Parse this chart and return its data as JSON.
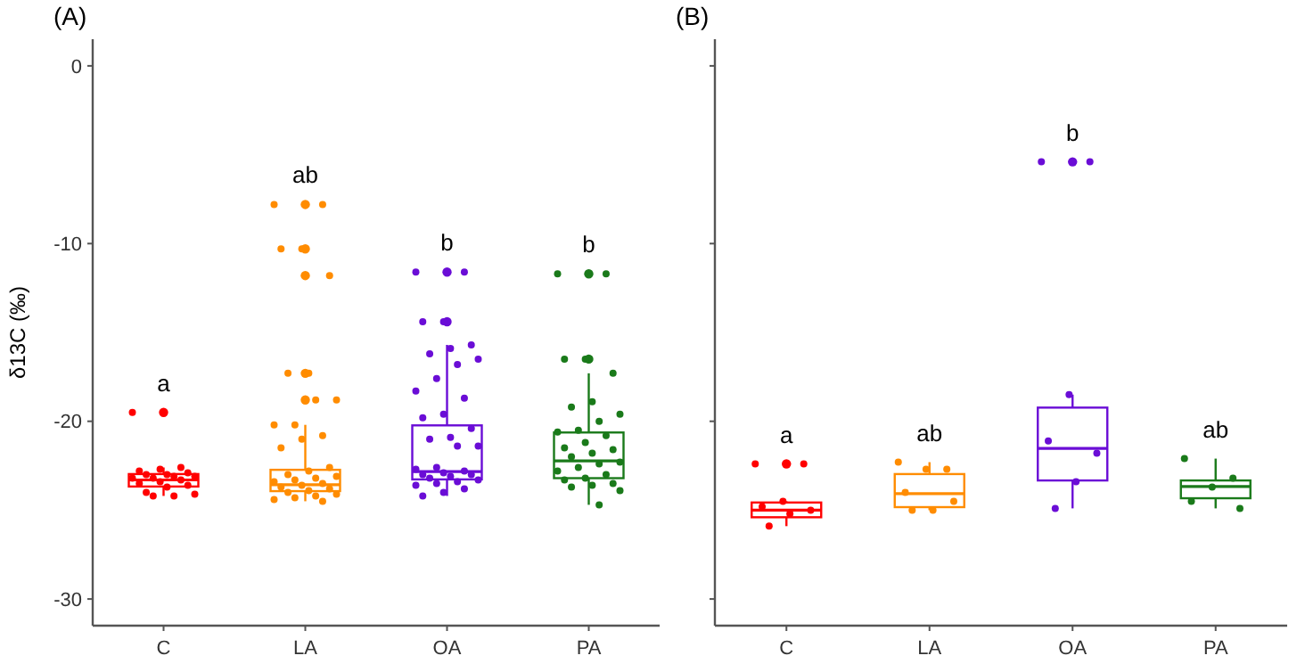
{
  "chart_data": [
    {
      "type": "box",
      "title": "(A)",
      "ylabel": "δ13C (‰)",
      "categories": [
        "C",
        "LA",
        "OA",
        "PA"
      ],
      "colors": [
        "#ff0000",
        "#ff8c00",
        "#6a0dd6",
        "#1a7a1a"
      ],
      "boxes": [
        {
          "low": -24.2,
          "q1": -23.67,
          "median": -23.3,
          "q3": -22.97,
          "high": -22.6,
          "outliers": [
            -19.5
          ]
        },
        {
          "low": -24.5,
          "q1": -23.93,
          "median": -23.57,
          "q3": -22.73,
          "high": -20.2,
          "outliers": [
            -7.8,
            -10.3,
            -11.8,
            -17.3,
            -18.8
          ]
        },
        {
          "low": -24.2,
          "q1": -23.27,
          "median": -22.83,
          "q3": -20.23,
          "high": -15.7,
          "outliers": [
            -11.6,
            -14.4
          ]
        },
        {
          "low": -24.7,
          "q1": -23.2,
          "median": -22.23,
          "q3": -20.63,
          "high": -17.3,
          "outliers": [
            -11.7,
            -16.5
          ]
        }
      ],
      "series": [
        {
          "type": "scatter",
          "color": "#ff0000",
          "x": [
            "C",
            "C",
            "C",
            "C",
            "C",
            "C",
            "C",
            "C",
            "C",
            "C",
            "C",
            "C",
            "C",
            "C",
            "C",
            "C",
            "C",
            "C",
            "C",
            "C"
          ],
          "values": [
            -19.5,
            -22.6,
            -22.7,
            -22.8,
            -22.9,
            -23.0,
            -23.0,
            -23.1,
            -23.1,
            -23.2,
            -23.2,
            -23.3,
            -23.4,
            -23.5,
            -23.6,
            -23.7,
            -24.0,
            -24.1,
            -24.2,
            -24.2
          ]
        },
        {
          "type": "scatter",
          "color": "#ff8c00",
          "x": [
            "LA",
            "LA",
            "LA",
            "LA",
            "LA",
            "LA",
            "LA",
            "LA",
            "LA",
            "LA",
            "LA",
            "LA",
            "LA",
            "LA",
            "LA",
            "LA",
            "LA",
            "LA",
            "LA",
            "LA",
            "LA",
            "LA",
            "LA",
            "LA",
            "LA",
            "LA",
            "LA",
            "LA",
            "LA",
            "LA",
            "LA",
            "LA"
          ],
          "values": [
            -7.8,
            -7.8,
            -10.3,
            -10.3,
            -11.8,
            -17.3,
            -17.3,
            -18.8,
            -18.8,
            -20.2,
            -20.2,
            -20.8,
            -21.0,
            -21.5,
            -22.6,
            -22.8,
            -23.0,
            -23.1,
            -23.2,
            -23.3,
            -23.4,
            -23.5,
            -23.6,
            -23.7,
            -23.8,
            -23.9,
            -24.0,
            -24.1,
            -24.2,
            -24.3,
            -24.4,
            -24.5
          ]
        },
        {
          "type": "scatter",
          "color": "#6a0dd6",
          "x": [
            "OA",
            "OA",
            "OA",
            "OA",
            "OA",
            "OA",
            "OA",
            "OA",
            "OA",
            "OA",
            "OA",
            "OA",
            "OA",
            "OA",
            "OA",
            "OA",
            "OA",
            "OA",
            "OA",
            "OA",
            "OA",
            "OA",
            "OA",
            "OA",
            "OA",
            "OA",
            "OA",
            "OA",
            "OA",
            "OA",
            "OA",
            "OA",
            "OA",
            "OA"
          ],
          "values": [
            -11.6,
            -11.6,
            -14.4,
            -14.4,
            -15.7,
            -15.9,
            -16.2,
            -16.5,
            -16.8,
            -17.6,
            -18.3,
            -18.7,
            -19.6,
            -19.8,
            -20.4,
            -20.9,
            -21.0,
            -21.4,
            -21.4,
            -22.6,
            -22.7,
            -22.8,
            -22.9,
            -23.0,
            -23.0,
            -23.1,
            -23.2,
            -23.3,
            -23.4,
            -23.5,
            -23.6,
            -23.8,
            -24.0,
            -24.2
          ]
        },
        {
          "type": "scatter",
          "color": "#1a7a1a",
          "x": [
            "PA",
            "PA",
            "PA",
            "PA",
            "PA",
            "PA",
            "PA",
            "PA",
            "PA",
            "PA",
            "PA",
            "PA",
            "PA",
            "PA",
            "PA",
            "PA",
            "PA",
            "PA",
            "PA",
            "PA",
            "PA",
            "PA",
            "PA",
            "PA",
            "PA",
            "PA",
            "PA",
            "PA",
            "PA"
          ],
          "values": [
            -11.7,
            -11.7,
            -16.5,
            -16.5,
            -17.3,
            -18.9,
            -19.2,
            -19.6,
            -20.0,
            -20.5,
            -20.6,
            -20.8,
            -21.2,
            -21.5,
            -21.6,
            -21.8,
            -22.0,
            -22.3,
            -22.4,
            -22.6,
            -22.8,
            -23.0,
            -23.2,
            -23.3,
            -23.5,
            -23.6,
            -23.7,
            -23.9,
            -24.7
          ]
        }
      ],
      "ylim": [
        -31.5,
        1.5
      ],
      "yticks": [
        -30,
        -20,
        -10,
        0
      ],
      "annotations": [
        "a",
        "ab",
        "b",
        "b"
      ]
    },
    {
      "type": "box",
      "title": "(B)",
      "categories": [
        "C",
        "LA",
        "OA",
        "PA"
      ],
      "colors": [
        "#ff0000",
        "#ff8c00",
        "#6a0dd6",
        "#1a7a1a"
      ],
      "boxes": [
        {
          "low": -25.9,
          "q1": -25.4,
          "median": -25.0,
          "q3": -24.57,
          "high": -24.5,
          "outliers": [
            -22.4
          ]
        },
        {
          "low": -25.0,
          "q1": -24.83,
          "median": -24.07,
          "q3": -22.97,
          "high": -22.3
        },
        {
          "low": -24.9,
          "q1": -23.33,
          "median": -21.53,
          "q3": -19.23,
          "high": -18.5,
          "outliers": [
            -5.4
          ]
        },
        {
          "low": -24.9,
          "q1": -24.33,
          "median": -23.67,
          "q3": -23.33,
          "high": -22.1
        }
      ],
      "series": [
        {
          "type": "scatter",
          "color": "#ff0000",
          "x": [
            "C",
            "C",
            "C",
            "C",
            "C",
            "C",
            "C"
          ],
          "values": [
            -22.4,
            -22.4,
            -24.5,
            -24.8,
            -25.0,
            -25.2,
            -25.9
          ]
        },
        {
          "type": "scatter",
          "color": "#ff8c00",
          "x": [
            "LA",
            "LA",
            "LA",
            "LA",
            "LA",
            "LA",
            "LA"
          ],
          "values": [
            -22.3,
            -22.7,
            -22.7,
            -24.0,
            -24.5,
            -25.0,
            -25.0
          ]
        },
        {
          "type": "scatter",
          "color": "#6a0dd6",
          "x": [
            "OA",
            "OA",
            "OA",
            "OA",
            "OA",
            "OA",
            "OA"
          ],
          "values": [
            -5.4,
            -5.4,
            -18.5,
            -21.1,
            -21.8,
            -23.4,
            -24.9
          ]
        },
        {
          "type": "scatter",
          "color": "#1a7a1a",
          "x": [
            "PA",
            "PA",
            "PA",
            "PA",
            "PA"
          ],
          "values": [
            -22.1,
            -23.2,
            -23.7,
            -24.5,
            -24.9
          ]
        }
      ],
      "ylim": [
        -31.5,
        1.5
      ],
      "yticks": [
        -30,
        -20,
        -10,
        0
      ],
      "tick_labels": "x",
      "annotations": [
        "a",
        "ab",
        "b",
        "ab"
      ]
    }
  ]
}
